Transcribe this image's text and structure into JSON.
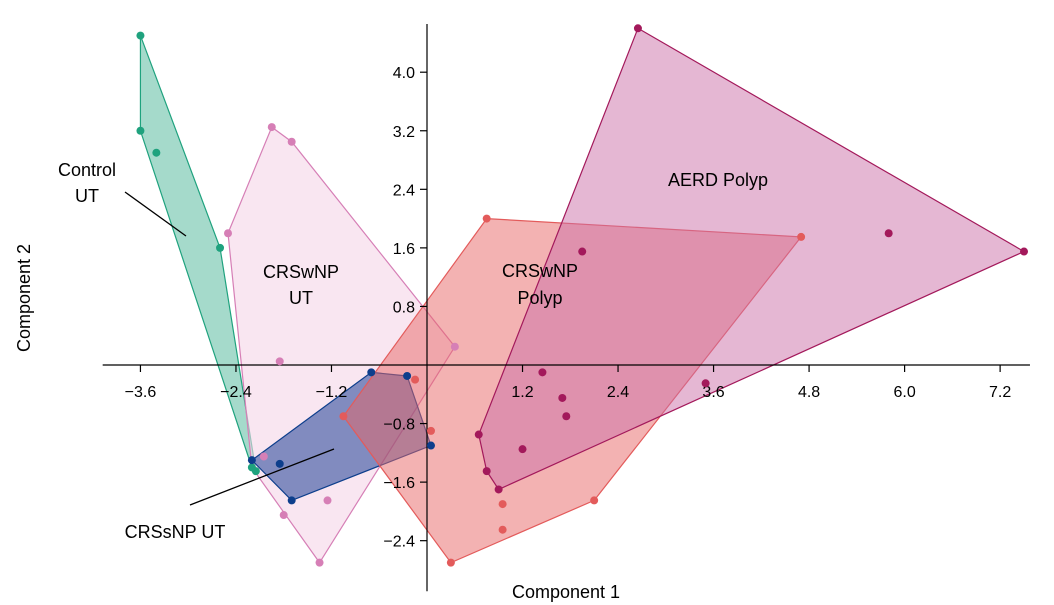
{
  "chart_data": {
    "type": "scatter",
    "title": "",
    "xlabel": "Component 1",
    "ylabel": "Component 2",
    "xlim": [
      -4.2,
      7.6
    ],
    "ylim": [
      -2.9,
      4.7
    ],
    "x_ticks": [
      -3.6,
      -2.4,
      -1.2,
      1.2,
      2.4,
      3.6,
      4.8,
      6.0,
      7.2
    ],
    "x_tick_labels": [
      "−3.6",
      "−2.4",
      "−1.2",
      "1.2",
      "2.4",
      "3.6",
      "4.8",
      "6.0",
      "7.2"
    ],
    "y_ticks": [
      4.0,
      3.2,
      2.4,
      1.6,
      0.8,
      -0.8,
      -1.6,
      -2.4
    ],
    "y_tick_labels": [
      "4.0",
      "3.2",
      "2.4",
      "1.6",
      "0.8",
      "−0.8",
      "−1.6",
      "−2.4"
    ],
    "grid": false,
    "legend": "none",
    "series": [
      {
        "name": "Control UT",
        "color": "#1fa27e",
        "fill": "#1fa27e",
        "fill_opacity": 0.4,
        "points": [
          [
            -3.6,
            4.5
          ],
          [
            -3.6,
            3.2
          ],
          [
            -3.4,
            2.9
          ],
          [
            -2.6,
            1.6
          ],
          [
            -2.2,
            -1.4
          ],
          [
            -2.15,
            -1.45
          ]
        ],
        "hull": [
          [
            -3.6,
            4.5
          ],
          [
            -2.6,
            1.6
          ],
          [
            -2.15,
            -1.45
          ],
          [
            -2.2,
            -1.4
          ],
          [
            -3.6,
            3.2
          ]
        ]
      },
      {
        "name": "CRSwNP UT",
        "color": "#d67fb6",
        "fill": "#f5d6e8",
        "fill_opacity": 0.6,
        "points": [
          [
            -1.95,
            3.25
          ],
          [
            -1.7,
            3.05
          ],
          [
            -2.5,
            1.8
          ],
          [
            -1.85,
            0.05
          ],
          [
            0.35,
            0.25
          ],
          [
            -2.05,
            -1.25
          ],
          [
            -1.8,
            -2.05
          ],
          [
            -1.25,
            -1.85
          ],
          [
            -1.35,
            -2.7
          ]
        ],
        "hull": [
          [
            -1.95,
            3.25
          ],
          [
            -1.7,
            3.05
          ],
          [
            0.35,
            0.25
          ],
          [
            -1.35,
            -2.7
          ],
          [
            -2.2,
            -1.4
          ],
          [
            -2.5,
            1.8
          ]
        ]
      },
      {
        "name": "CRSsNP UT",
        "color": "#0d3e8c",
        "fill": "#1f3f96",
        "fill_opacity": 0.55,
        "points": [
          [
            -0.7,
            -0.1
          ],
          [
            -0.25,
            -0.15
          ],
          [
            0.05,
            -1.1
          ],
          [
            -2.2,
            -1.3
          ],
          [
            -1.85,
            -1.35
          ],
          [
            -1.7,
            -1.85
          ]
        ],
        "hull": [
          [
            -0.7,
            -0.1
          ],
          [
            -0.25,
            -0.15
          ],
          [
            0.05,
            -1.1
          ],
          [
            -1.7,
            -1.85
          ],
          [
            -2.2,
            -1.3
          ]
        ]
      },
      {
        "name": "CRSwNP Polyp",
        "color": "#e35b5b",
        "fill": "#e86666",
        "fill_opacity": 0.5,
        "points": [
          [
            0.75,
            2.0
          ],
          [
            4.7,
            1.75
          ],
          [
            2.1,
            -1.85
          ],
          [
            -0.15,
            -0.2
          ],
          [
            -1.05,
            -0.7
          ],
          [
            0.05,
            -0.9
          ],
          [
            0.95,
            -1.9
          ],
          [
            0.95,
            -2.25
          ],
          [
            0.3,
            -2.7
          ]
        ],
        "hull": [
          [
            0.75,
            2.0
          ],
          [
            4.7,
            1.75
          ],
          [
            2.1,
            -1.85
          ],
          [
            0.3,
            -2.7
          ],
          [
            -1.05,
            -0.7
          ]
        ]
      },
      {
        "name": "AERD Polyp",
        "color": "#a3195b",
        "fill": "#cc6fa8",
        "fill_opacity": 0.5,
        "points": [
          [
            2.65,
            4.6
          ],
          [
            7.5,
            1.55
          ],
          [
            5.8,
            1.8
          ],
          [
            1.95,
            1.55
          ],
          [
            1.45,
            -0.1
          ],
          [
            1.7,
            -0.45
          ],
          [
            1.75,
            -0.7
          ],
          [
            1.2,
            -1.15
          ],
          [
            3.5,
            -0.25
          ],
          [
            0.65,
            -0.95
          ],
          [
            0.75,
            -1.45
          ],
          [
            0.9,
            -1.7
          ]
        ],
        "hull": [
          [
            2.65,
            4.6
          ],
          [
            7.5,
            1.55
          ],
          [
            0.9,
            -1.7
          ],
          [
            0.75,
            -1.45
          ],
          [
            0.65,
            -0.95
          ]
        ]
      }
    ],
    "annotations": [
      {
        "text": "Control UT",
        "lines": [
          "Control",
          "UT"
        ]
      },
      {
        "text": "CRSwNP UT",
        "lines": [
          "CRSwNP",
          "UT"
        ]
      },
      {
        "text": "CRSsNP UT",
        "lines": [
          "CRSsNP UT"
        ]
      },
      {
        "text": "CRSwNP Polyp",
        "lines": [
          "CRSwNP",
          "Polyp"
        ]
      },
      {
        "text": "AERD Polyp",
        "lines": [
          "AERD Polyp"
        ]
      }
    ]
  }
}
